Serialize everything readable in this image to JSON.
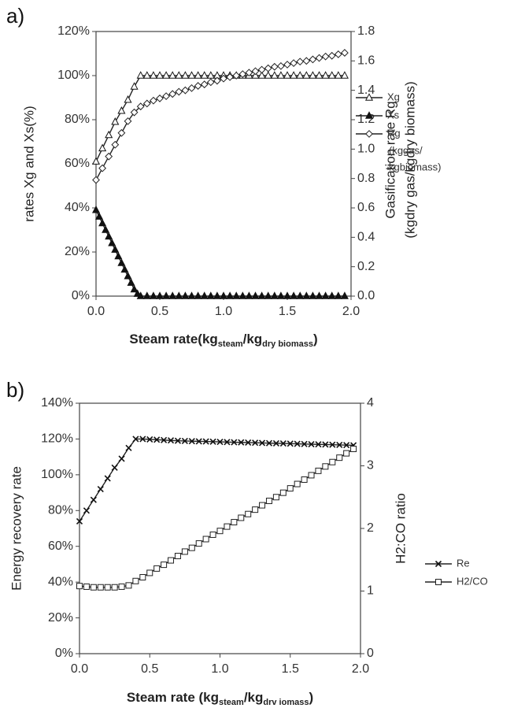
{
  "chart_data": [
    {
      "type": "line",
      "panel_label": "a)",
      "xlabel": {
        "prefix": "Steam rate(kg",
        "sub1": "steam",
        "mid": "/kg",
        "sub2": "dry biomass",
        "suffix": ")"
      },
      "ylabel_left": "rates Xg and Xs(%)",
      "ylabel_right_line1": "Gasification rate  Rg",
      "ylabel_right_line2": "(kgdry gas/kgdry biomass)",
      "xlim": [
        0,
        2.0
      ],
      "ylim_left": [
        0,
        120
      ],
      "ylim_right": [
        0,
        1.8
      ],
      "x_ticks": [
        "0.0",
        "0.5",
        "1.0",
        "1.5",
        "2.0"
      ],
      "y_left_ticks": [
        "0%",
        "20%",
        "40%",
        "60%",
        "80%",
        "100%",
        "120%"
      ],
      "y_right_ticks": [
        "0.0",
        "0.2",
        "0.4",
        "0.6",
        "0.8",
        "1.0",
        "1.2",
        "1.4",
        "1.6",
        "1.8"
      ],
      "legend_position": "right",
      "series": [
        {
          "name": "Xg",
          "axis": "left",
          "marker": "triangle-open",
          "x": [
            0,
            0.05,
            0.1,
            0.15,
            0.2,
            0.25,
            0.3,
            0.35,
            0.4,
            0.45,
            0.5,
            0.55,
            0.6,
            0.65,
            0.7,
            0.75,
            0.8,
            0.85,
            0.9,
            0.95,
            1.0,
            1.05,
            1.1,
            1.15,
            1.2,
            1.25,
            1.3,
            1.35,
            1.4,
            1.45,
            1.5,
            1.55,
            1.6,
            1.65,
            1.7,
            1.75,
            1.8,
            1.85,
            1.9,
            1.95
          ],
          "y": [
            61,
            67,
            73,
            79,
            84,
            89,
            95,
            100,
            100,
            100,
            100,
            100,
            100,
            100,
            100,
            100,
            100,
            100,
            100,
            100,
            100,
            100,
            100,
            100,
            100,
            100,
            100,
            100,
            100,
            100,
            100,
            100,
            100,
            100,
            100,
            100,
            100,
            100,
            100,
            100
          ]
        },
        {
          "name": "Xs",
          "axis": "left",
          "marker": "triangle-filled",
          "x": [
            0,
            0.025,
            0.05,
            0.075,
            0.1,
            0.125,
            0.15,
            0.175,
            0.2,
            0.225,
            0.25,
            0.275,
            0.3,
            0.325,
            0.35,
            0.4,
            0.45,
            0.5,
            0.55,
            0.6,
            0.65,
            0.7,
            0.75,
            0.8,
            0.85,
            0.9,
            0.95,
            1.0,
            1.05,
            1.1,
            1.15,
            1.2,
            1.25,
            1.3,
            1.35,
            1.4,
            1.45,
            1.5,
            1.55,
            1.6,
            1.65,
            1.7,
            1.75,
            1.8,
            1.85,
            1.9,
            1.95
          ],
          "y": [
            39,
            36,
            33,
            30,
            27,
            24,
            21,
            18,
            15,
            12,
            9,
            6,
            3,
            1,
            0,
            0,
            0,
            0,
            0,
            0,
            0,
            0,
            0,
            0,
            0,
            0,
            0,
            0,
            0,
            0,
            0,
            0,
            0,
            0,
            0,
            0,
            0,
            0,
            0,
            0,
            0,
            0,
            0,
            0,
            0,
            0,
            0
          ]
        },
        {
          "name": "Rg",
          "legend_note_line1": "(kggas/",
          "legend_note_line2": "kgbiomass)",
          "axis": "right",
          "marker": "diamond-open",
          "x": [
            0,
            0.05,
            0.1,
            0.15,
            0.2,
            0.25,
            0.3,
            0.35,
            0.4,
            0.45,
            0.5,
            0.55,
            0.6,
            0.65,
            0.7,
            0.75,
            0.8,
            0.85,
            0.9,
            0.95,
            1.0,
            1.05,
            1.1,
            1.15,
            1.2,
            1.25,
            1.3,
            1.35,
            1.4,
            1.45,
            1.5,
            1.55,
            1.6,
            1.65,
            1.7,
            1.75,
            1.8,
            1.85,
            1.9,
            1.95
          ],
          "y": [
            0.79,
            0.87,
            0.95,
            1.03,
            1.11,
            1.19,
            1.25,
            1.29,
            1.31,
            1.33,
            1.345,
            1.36,
            1.375,
            1.39,
            1.4,
            1.415,
            1.43,
            1.44,
            1.455,
            1.465,
            1.48,
            1.49,
            1.5,
            1.51,
            1.52,
            1.53,
            1.54,
            1.55,
            1.56,
            1.565,
            1.575,
            1.585,
            1.595,
            1.6,
            1.61,
            1.62,
            1.63,
            1.635,
            1.645,
            1.655
          ]
        }
      ]
    },
    {
      "type": "line",
      "panel_label": "b)",
      "xlabel": {
        "prefix": "Steam rate (kg",
        "sub1": "steam",
        "mid": "/kg",
        "sub2": "drv iomass",
        "suffix": ")"
      },
      "ylabel_left": "Energy recovery rate",
      "ylabel_right": "H2:CO ratio",
      "xlim": [
        0,
        2.0
      ],
      "ylim_left": [
        0,
        140
      ],
      "ylim_right": [
        0,
        4
      ],
      "x_ticks": [
        "0.0",
        "0.5",
        "1.0",
        "1.5",
        "2.0"
      ],
      "y_left_ticks": [
        "0%",
        "20%",
        "40%",
        "60%",
        "80%",
        "100%",
        "120%",
        "140%"
      ],
      "y_right_ticks": [
        "0",
        "1",
        "2",
        "3",
        "4"
      ],
      "legend_position": "right",
      "series": [
        {
          "name": "Re",
          "axis": "left",
          "marker": "x",
          "x": [
            0,
            0.05,
            0.1,
            0.15,
            0.2,
            0.25,
            0.3,
            0.35,
            0.4,
            0.45,
            0.5,
            0.55,
            0.6,
            0.65,
            0.7,
            0.75,
            0.8,
            0.85,
            0.9,
            0.95,
            1.0,
            1.05,
            1.1,
            1.15,
            1.2,
            1.25,
            1.3,
            1.35,
            1.4,
            1.45,
            1.5,
            1.55,
            1.6,
            1.65,
            1.7,
            1.75,
            1.8,
            1.85,
            1.9,
            1.95
          ],
          "y": [
            74,
            80,
            86,
            92,
            98,
            104,
            109,
            115,
            120,
            120,
            119.8,
            119.6,
            119.4,
            119.2,
            119,
            118.9,
            118.8,
            118.7,
            118.6,
            118.5,
            118.4,
            118.3,
            118.2,
            118.1,
            118,
            117.9,
            117.8,
            117.7,
            117.6,
            117.5,
            117.4,
            117.3,
            117.2,
            117.1,
            117,
            116.9,
            116.8,
            116.7,
            116.6,
            116.5
          ]
        },
        {
          "name": "H2/CO",
          "axis": "right",
          "marker": "square-open",
          "x": [
            0,
            0.05,
            0.1,
            0.15,
            0.2,
            0.25,
            0.3,
            0.35,
            0.4,
            0.45,
            0.5,
            0.55,
            0.6,
            0.65,
            0.7,
            0.75,
            0.8,
            0.85,
            0.9,
            0.95,
            1.0,
            1.05,
            1.1,
            1.15,
            1.2,
            1.25,
            1.3,
            1.35,
            1.4,
            1.45,
            1.5,
            1.55,
            1.6,
            1.65,
            1.7,
            1.75,
            1.8,
            1.85,
            1.9,
            1.95
          ],
          "y": [
            1.08,
            1.07,
            1.06,
            1.06,
            1.06,
            1.06,
            1.07,
            1.09,
            1.16,
            1.22,
            1.29,
            1.36,
            1.42,
            1.49,
            1.56,
            1.63,
            1.69,
            1.76,
            1.83,
            1.9,
            1.96,
            2.03,
            2.1,
            2.17,
            2.23,
            2.3,
            2.37,
            2.44,
            2.5,
            2.57,
            2.64,
            2.71,
            2.78,
            2.85,
            2.92,
            2.99,
            3.06,
            3.13,
            3.2,
            3.27
          ]
        }
      ]
    }
  ]
}
